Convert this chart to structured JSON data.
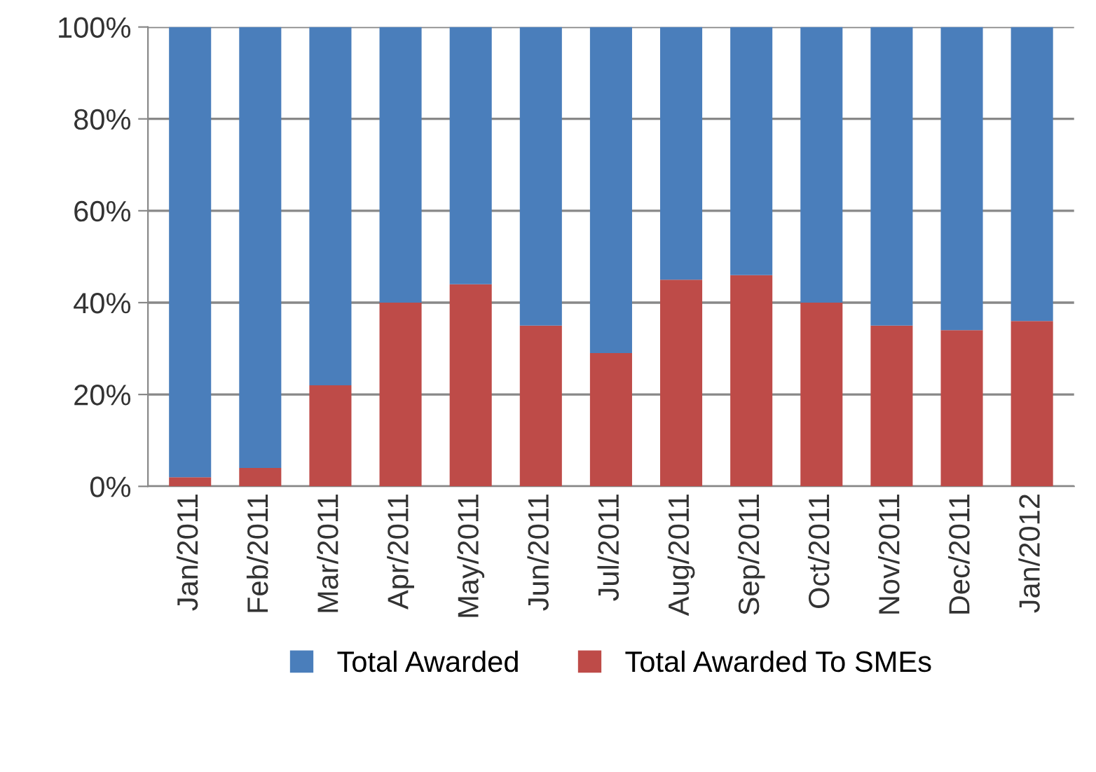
{
  "chart_data": {
    "type": "bar",
    "stacked": true,
    "categories": [
      "Jan/2011",
      "Feb/2011",
      "Mar/2011",
      "Apr/2011",
      "May/2011",
      "Jun/2011",
      "Jul/2011",
      "Aug/2011",
      "Sep/2011",
      "Oct/2011",
      "Nov/2011",
      "Dec/2011",
      "Jan/2012"
    ],
    "series": [
      {
        "name": "Total Awarded To SMEs",
        "color": "#be4b48",
        "values": [
          2,
          4,
          22,
          40,
          44,
          35,
          29,
          45,
          46,
          40,
          35,
          34,
          36
        ]
      },
      {
        "name": "Total Awarded",
        "color": "#4a7ebb",
        "values": [
          98,
          96,
          78,
          60,
          56,
          65,
          71,
          55,
          54,
          60,
          65,
          66,
          64
        ]
      }
    ],
    "ylim": [
      0,
      100
    ],
    "yticks": [
      {
        "value": 0,
        "label": "0%"
      },
      {
        "value": 20,
        "label": "20%"
      },
      {
        "value": 40,
        "label": "40%"
      },
      {
        "value": 60,
        "label": "60%"
      },
      {
        "value": 80,
        "label": "80%"
      },
      {
        "value": 100,
        "label": "100%"
      }
    ],
    "grid": "y",
    "legend": "bottom"
  }
}
